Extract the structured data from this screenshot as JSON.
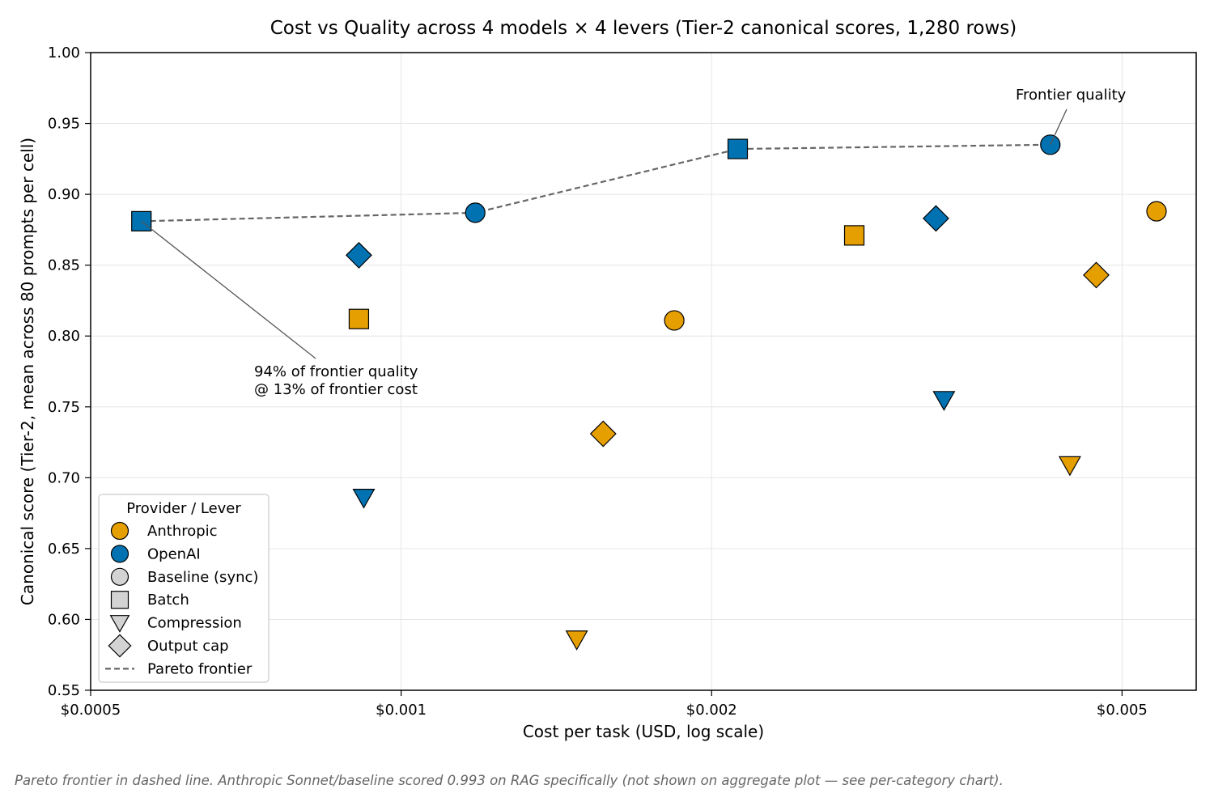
{
  "chart_data": {
    "type": "scatter",
    "title": "Cost vs Quality across 4 models × 4 levers (Tier-2 canonical scores, 1,280 rows)",
    "xlabel": "Cost per task (USD, log scale)",
    "ylabel": "Canonical score (Tier-2, mean across 80 prompts per cell)",
    "x_scale": "log",
    "xlim": [
      0.0005,
      0.0059
    ],
    "ylim": [
      0.55,
      1.0
    ],
    "x_ticks": [
      {
        "value": 0.0005,
        "label": "$0.0005"
      },
      {
        "value": 0.001,
        "label": "$0.001"
      },
      {
        "value": 0.002,
        "label": "$0.002"
      },
      {
        "value": 0.005,
        "label": "$0.005"
      }
    ],
    "y_ticks": [
      {
        "value": 0.55,
        "label": "0.55"
      },
      {
        "value": 0.6,
        "label": "0.60"
      },
      {
        "value": 0.65,
        "label": "0.65"
      },
      {
        "value": 0.7,
        "label": "0.70"
      },
      {
        "value": 0.75,
        "label": "0.75"
      },
      {
        "value": 0.8,
        "label": "0.80"
      },
      {
        "value": 0.85,
        "label": "0.85"
      },
      {
        "value": 0.9,
        "label": "0.90"
      },
      {
        "value": 0.95,
        "label": "0.95"
      },
      {
        "value": 1.0,
        "label": "1.00"
      }
    ],
    "grid": true,
    "colors": {
      "Anthropic": "#E69F00",
      "OpenAI": "#0072B2",
      "neutral": "#d3d3d3",
      "frontier": "#666666"
    },
    "points": [
      {
        "provider": "Anthropic",
        "lever": "Baseline (sync)",
        "x": 0.00184,
        "y": 0.811
      },
      {
        "provider": "Anthropic",
        "lever": "Baseline (sync)",
        "x": 0.0054,
        "y": 0.888
      },
      {
        "provider": "Anthropic",
        "lever": "Batch",
        "x": 0.00091,
        "y": 0.812
      },
      {
        "provider": "Anthropic",
        "lever": "Batch",
        "x": 0.00275,
        "y": 0.871
      },
      {
        "provider": "Anthropic",
        "lever": "Compression",
        "x": 0.00148,
        "y": 0.586
      },
      {
        "provider": "Anthropic",
        "lever": "Compression",
        "x": 0.00445,
        "y": 0.709
      },
      {
        "provider": "Anthropic",
        "lever": "Output cap",
        "x": 0.00157,
        "y": 0.731
      },
      {
        "provider": "Anthropic",
        "lever": "Output cap",
        "x": 0.00472,
        "y": 0.843
      },
      {
        "provider": "OpenAI",
        "lever": "Baseline (sync)",
        "x": 0.00118,
        "y": 0.887
      },
      {
        "provider": "OpenAI",
        "lever": "Baseline (sync)",
        "x": 0.00426,
        "y": 0.935
      },
      {
        "provider": "OpenAI",
        "lever": "Batch",
        "x": 0.00056,
        "y": 0.881
      },
      {
        "provider": "OpenAI",
        "lever": "Batch",
        "x": 0.00212,
        "y": 0.932
      },
      {
        "provider": "OpenAI",
        "lever": "Compression",
        "x": 0.00092,
        "y": 0.686
      },
      {
        "provider": "OpenAI",
        "lever": "Compression",
        "x": 0.00336,
        "y": 0.755
      },
      {
        "provider": "OpenAI",
        "lever": "Output cap",
        "x": 0.00091,
        "y": 0.857
      },
      {
        "provider": "OpenAI",
        "lever": "Output cap",
        "x": 0.0033,
        "y": 0.883
      }
    ],
    "pareto_frontier": [
      {
        "x": 0.00056,
        "y": 0.881
      },
      {
        "x": 0.00118,
        "y": 0.887
      },
      {
        "x": 0.00212,
        "y": 0.932
      },
      {
        "x": 0.00426,
        "y": 0.935
      }
    ],
    "annotations": [
      {
        "id": "cheap",
        "lines": [
          "94% of frontier quality",
          "@ 13% of frontier cost"
        ],
        "target": {
          "x": 0.00056,
          "y": 0.881
        }
      },
      {
        "id": "frontier",
        "lines": [
          "Frontier quality"
        ],
        "target": {
          "x": 0.00426,
          "y": 0.935
        }
      }
    ],
    "legend": {
      "title": "Provider / Lever",
      "placement": "lower-left",
      "entries": [
        {
          "label": "Anthropic",
          "marker": "circle",
          "color": "#E69F00"
        },
        {
          "label": "OpenAI",
          "marker": "circle",
          "color": "#0072B2"
        },
        {
          "label": "Baseline (sync)",
          "marker": "circle",
          "color": "#d3d3d3"
        },
        {
          "label": "Batch",
          "marker": "square",
          "color": "#d3d3d3"
        },
        {
          "label": "Compression",
          "marker": "triangle-down",
          "color": "#d3d3d3"
        },
        {
          "label": "Output cap",
          "marker": "diamond",
          "color": "#d3d3d3"
        },
        {
          "label": "Pareto frontier",
          "marker": "dashed-line",
          "color": "#666666"
        }
      ]
    },
    "footnote": "Pareto frontier in dashed line. Anthropic Sonnet/baseline scored 0.993 on RAG specifically (not shown on aggregate plot — see per-category chart)."
  }
}
